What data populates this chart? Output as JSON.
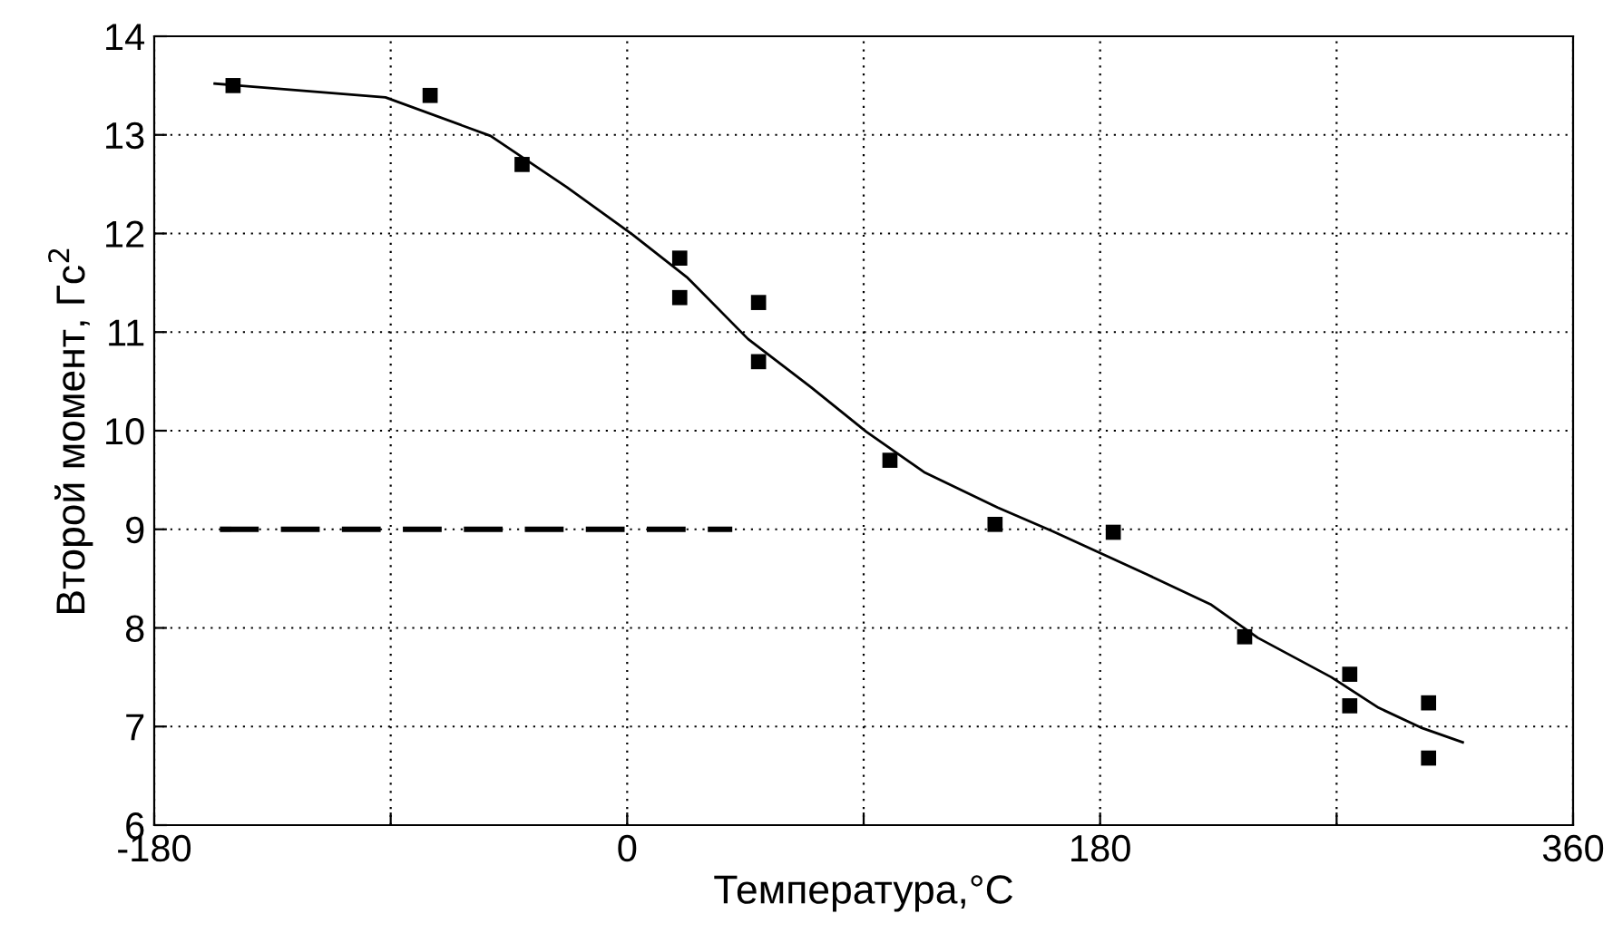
{
  "chart_data": {
    "type": "scatter",
    "xlabel": "Температура,°С",
    "ylabel": "Второй момент, Гс$^{2}$",
    "xlim": [
      -180,
      360
    ],
    "xticks": [
      -180,
      {
        "value": -90,
        "label": null
      },
      0,
      {
        "value": 90,
        "label": null
      },
      180,
      {
        "value": 270,
        "label": null
      },
      360
    ],
    "ylim": [
      6,
      14
    ],
    "yticks": [
      6,
      7,
      8,
      9,
      10,
      11,
      12,
      13,
      14
    ],
    "grid": true,
    "series": [
      {
        "marker": "square",
        "color": "#000000",
        "x": [
          -150,
          -75,
          -40,
          20,
          20,
          50,
          50,
          100,
          140,
          185,
          235,
          275,
          275,
          305,
          305
        ],
        "values": [
          13.5,
          13.4,
          12.7,
          11.75,
          11.35,
          11.3,
          10.7,
          9.7,
          9.05,
          8.97,
          7.91,
          7.53,
          7.21,
          7.24,
          6.68
        ]
      },
      {
        "type": "line",
        "marker": "none",
        "line_style": "solid",
        "color": "#000000",
        "x": [
          -157,
          -92,
          -52,
          -23,
          2,
          23,
          46,
          70,
          91,
          113,
          141,
          162,
          198,
          222,
          240,
          268,
          286,
          302,
          318
        ],
        "values": [
          13.52,
          13.38,
          12.99,
          12.47,
          11.99,
          11.55,
          10.93,
          10.44,
          9.99,
          9.58,
          9.22,
          8.98,
          8.54,
          8.24,
          7.9,
          7.5,
          7.19,
          6.99,
          6.84
        ]
      },
      {
        "type": "line",
        "marker": "none",
        "line_style": "dashed",
        "color": "#000000",
        "x": [
          -155,
          40
        ],
        "values": [
          9,
          9
        ]
      }
    ]
  }
}
